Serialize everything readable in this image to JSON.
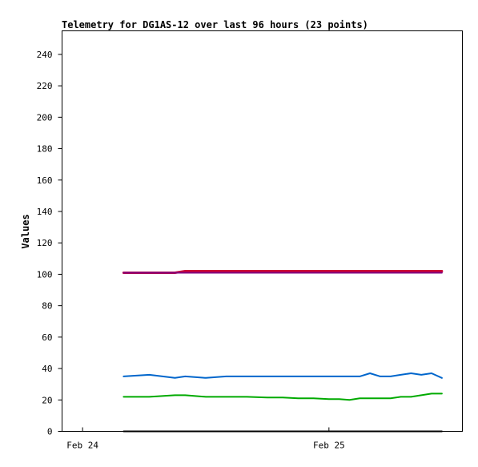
{
  "chart_data": {
    "type": "line",
    "title": "Telemetry for DG1AS-12 over last 96 hours (23 points)",
    "xlabel": "",
    "ylabel": "Values",
    "x_axis": {
      "type": "time",
      "range": [
        "2024-02-23T22:00",
        "2024-02-25T13:00"
      ],
      "ticks": [
        {
          "label": "Feb 24",
          "value": "2024-02-24T00:00"
        },
        {
          "label": "Feb 25",
          "value": "2024-02-25T00:00"
        }
      ]
    },
    "y_axis": {
      "range": [
        0,
        255
      ],
      "ticks": [
        0,
        20,
        40,
        60,
        80,
        100,
        120,
        140,
        160,
        180,
        200,
        220,
        240
      ]
    },
    "grid": false,
    "legend": "none",
    "x": [
      "2024-02-24T04:00",
      "2024-02-24T06:30",
      "2024-02-24T09:00",
      "2024-02-24T10:00",
      "2024-02-24T12:00",
      "2024-02-24T14:00",
      "2024-02-24T16:00",
      "2024-02-24T18:00",
      "2024-02-24T19:30",
      "2024-02-24T21:00",
      "2024-02-24T22:30",
      "2024-02-25T00:00",
      "2024-02-25T01:00",
      "2024-02-25T02:00",
      "2024-02-25T03:00",
      "2024-02-25T04:00",
      "2024-02-25T05:00",
      "2024-02-25T06:00",
      "2024-02-25T07:00",
      "2024-02-25T08:00",
      "2024-02-25T09:00",
      "2024-02-25T10:00",
      "2024-02-25T11:00"
    ],
    "series": [
      {
        "color": "#cc0033",
        "width": 3,
        "values": [
          101,
          101,
          101,
          102,
          102,
          102,
          102,
          102,
          102,
          102,
          102,
          102,
          102,
          102,
          102,
          102,
          102,
          102,
          102,
          102,
          102,
          102,
          102
        ]
      },
      {
        "color": "#800080",
        "width": 2,
        "values": [
          101,
          101,
          101,
          101,
          101,
          101,
          101,
          101,
          101,
          101,
          101,
          101,
          101,
          101,
          101,
          101,
          101,
          101,
          101,
          101,
          101,
          101,
          101
        ]
      },
      {
        "color": "#0066cc",
        "width": 2,
        "values": [
          35,
          36,
          34,
          35,
          34,
          35,
          35,
          35,
          35,
          35,
          35,
          35,
          35,
          35,
          35,
          37,
          35,
          35,
          36,
          37,
          36,
          37,
          34
        ]
      },
      {
        "color": "#00aa00",
        "width": 2,
        "values": [
          22,
          22,
          23,
          23,
          22,
          22,
          22,
          21.5,
          21.5,
          21,
          21,
          20.5,
          20.5,
          20,
          21,
          21,
          21,
          21,
          22,
          22,
          23,
          24,
          24
        ]
      },
      {
        "color": "#000000",
        "width": 2,
        "values": [
          0,
          0,
          0,
          0,
          0,
          0,
          0,
          0,
          0,
          0,
          0,
          0,
          0,
          0,
          0,
          0,
          0,
          0,
          0,
          0,
          0,
          0,
          0
        ]
      }
    ]
  }
}
